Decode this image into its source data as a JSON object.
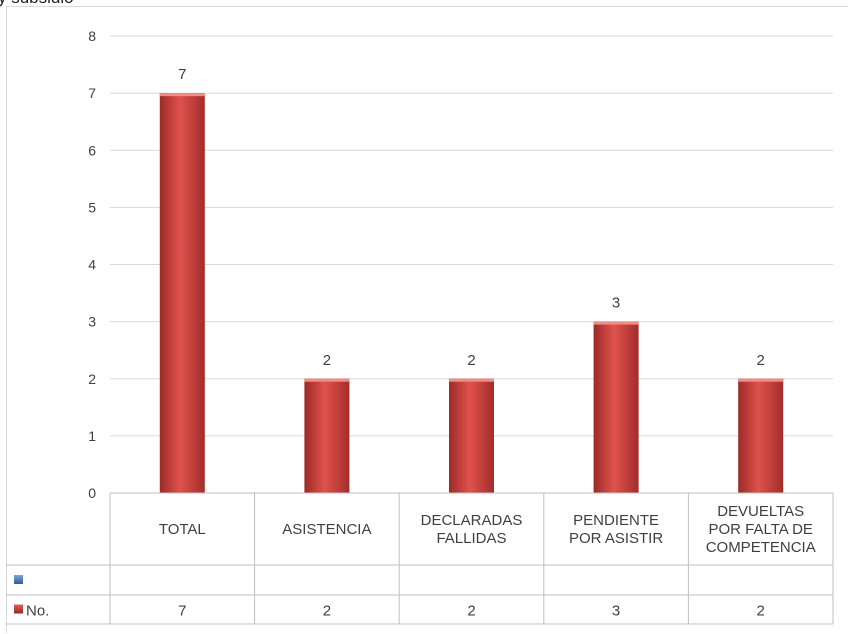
{
  "top_fragment": "y subsidio",
  "chart_data": {
    "type": "bar",
    "categories": [
      [
        "TOTAL"
      ],
      [
        "ASISTENCIA"
      ],
      [
        "DECLARADAS",
        "FALLIDAS"
      ],
      [
        "PENDIENTE",
        "POR ASISTIR"
      ],
      [
        "DEVUELTAS",
        "POR FALTA DE",
        "COMPETENCIA"
      ]
    ],
    "series": [
      {
        "name": "",
        "color": "#4f81bd",
        "values": [
          null,
          null,
          null,
          null,
          null
        ]
      },
      {
        "name": "No.",
        "color": "#c0504d",
        "values": [
          7,
          2,
          2,
          3,
          2
        ]
      }
    ],
    "ylim": [
      0,
      8
    ],
    "yticks": [
      0,
      1,
      2,
      3,
      4,
      5,
      6,
      7,
      8
    ],
    "grid": true,
    "data_labels": true,
    "data_table": true
  }
}
